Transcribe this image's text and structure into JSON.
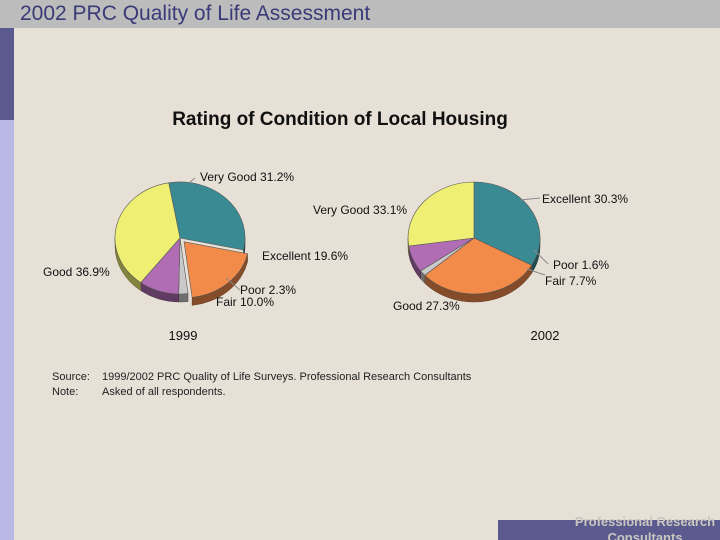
{
  "header": {
    "title": "2002 PRC Quality of Life Assessment"
  },
  "colors": {
    "very_good": "#3a8a94",
    "excellent": "#f28b4a",
    "poor": "#c9c9c9",
    "fair": "#b06db3",
    "good": "#efef74"
  },
  "chart_data": {
    "type": "pie",
    "title": "Rating of Condition of Local Housing",
    "charts": [
      {
        "year": "1999",
        "slices": [
          {
            "category": "Very Good",
            "label": "Very Good  31.2%",
            "value": 31.2
          },
          {
            "category": "Excellent",
            "label": "Excellent  19.6%",
            "value": 19.6
          },
          {
            "category": "Poor",
            "label": "Poor  2.3%",
            "value": 2.3
          },
          {
            "category": "Fair",
            "label": "Fair  10.0%",
            "value": 10.0
          },
          {
            "category": "Good",
            "label": "Good  36.9%",
            "value": 36.9
          }
        ]
      },
      {
        "year": "2002",
        "slices": [
          {
            "category": "Very Good",
            "label": "Very Good  33.1%",
            "value": 33.1
          },
          {
            "category": "Excellent",
            "label": "Excellent  30.3%",
            "value": 30.3
          },
          {
            "category": "Poor",
            "label": "Poor  1.6%",
            "value": 1.6
          },
          {
            "category": "Fair",
            "label": "Fair  7.7%",
            "value": 7.7
          },
          {
            "category": "Good",
            "label": "Good  27.3%",
            "value": 27.3
          }
        ]
      }
    ]
  },
  "source": {
    "source_key": "Source:",
    "source_text": "1999/2002 PRC Quality of Life Surveys. Professional Research Consultants",
    "note_key": "Note:",
    "note_text": "Asked of all respondents."
  },
  "footer": {
    "line1": "Professional Research",
    "line2": "Consultants"
  }
}
